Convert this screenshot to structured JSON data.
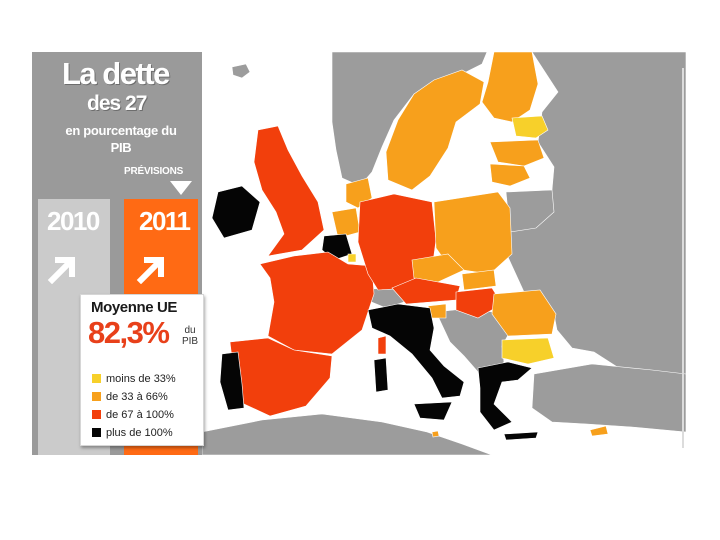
{
  "title": {
    "line1": "La dette",
    "line2": "des 27",
    "subtitle": "en pourcentage du PIB"
  },
  "previsions_label": "PRÉVISIONS",
  "years": {
    "past": "2010",
    "forecast": "2011"
  },
  "trend": {
    "2010": "rising-arrow",
    "2011": "rising-arrow"
  },
  "legend": {
    "heading": "Moyenne UE",
    "average": "82,3%",
    "average_unit": "du PIB",
    "categories": [
      {
        "label": "moins de 33%",
        "color": "#f7d02a"
      },
      {
        "label": "de 33 à 66%",
        "color": "#f7a01c"
      },
      {
        "label": "de 67 à 100%",
        "color": "#f23f0c"
      },
      {
        "label": "plus de 100%",
        "color": "#050505"
      }
    ]
  },
  "colors": {
    "non_eu": "#9c9c9c",
    "sea": "#ffffff",
    "panel": "#9a9a9a",
    "column_2010": "#cbcbcb",
    "column_2011": "#ff6a14",
    "accent": "#e8401a"
  },
  "regions": [
    {
      "name": "Finlande",
      "category": 1
    },
    {
      "name": "Suède",
      "category": 1
    },
    {
      "name": "Estonie",
      "category": 0
    },
    {
      "name": "Lettonie",
      "category": 1
    },
    {
      "name": "Lituanie",
      "category": 1
    },
    {
      "name": "Danemark",
      "category": 1
    },
    {
      "name": "Irlande",
      "category": 3
    },
    {
      "name": "Royaume-Uni",
      "category": 2
    },
    {
      "name": "Pays-Bas",
      "category": 1
    },
    {
      "name": "Belgique",
      "category": 3
    },
    {
      "name": "Luxembourg",
      "category": 0
    },
    {
      "name": "France",
      "category": 2
    },
    {
      "name": "Espagne",
      "category": 2
    },
    {
      "name": "Portugal",
      "category": 3
    },
    {
      "name": "Allemagne",
      "category": 2
    },
    {
      "name": "Pologne",
      "category": 1
    },
    {
      "name": "République tchèque",
      "category": 1
    },
    {
      "name": "Slovaquie",
      "category": 1
    },
    {
      "name": "Autriche",
      "category": 2
    },
    {
      "name": "Hongrie",
      "category": 2
    },
    {
      "name": "Slovénie",
      "category": 1
    },
    {
      "name": "Italie",
      "category": 3
    },
    {
      "name": "Malte",
      "category": 1
    },
    {
      "name": "Roumanie",
      "category": 1
    },
    {
      "name": "Bulgarie",
      "category": 0
    },
    {
      "name": "Grèce",
      "category": 3
    },
    {
      "name": "Chypre",
      "category": 1
    }
  ]
}
